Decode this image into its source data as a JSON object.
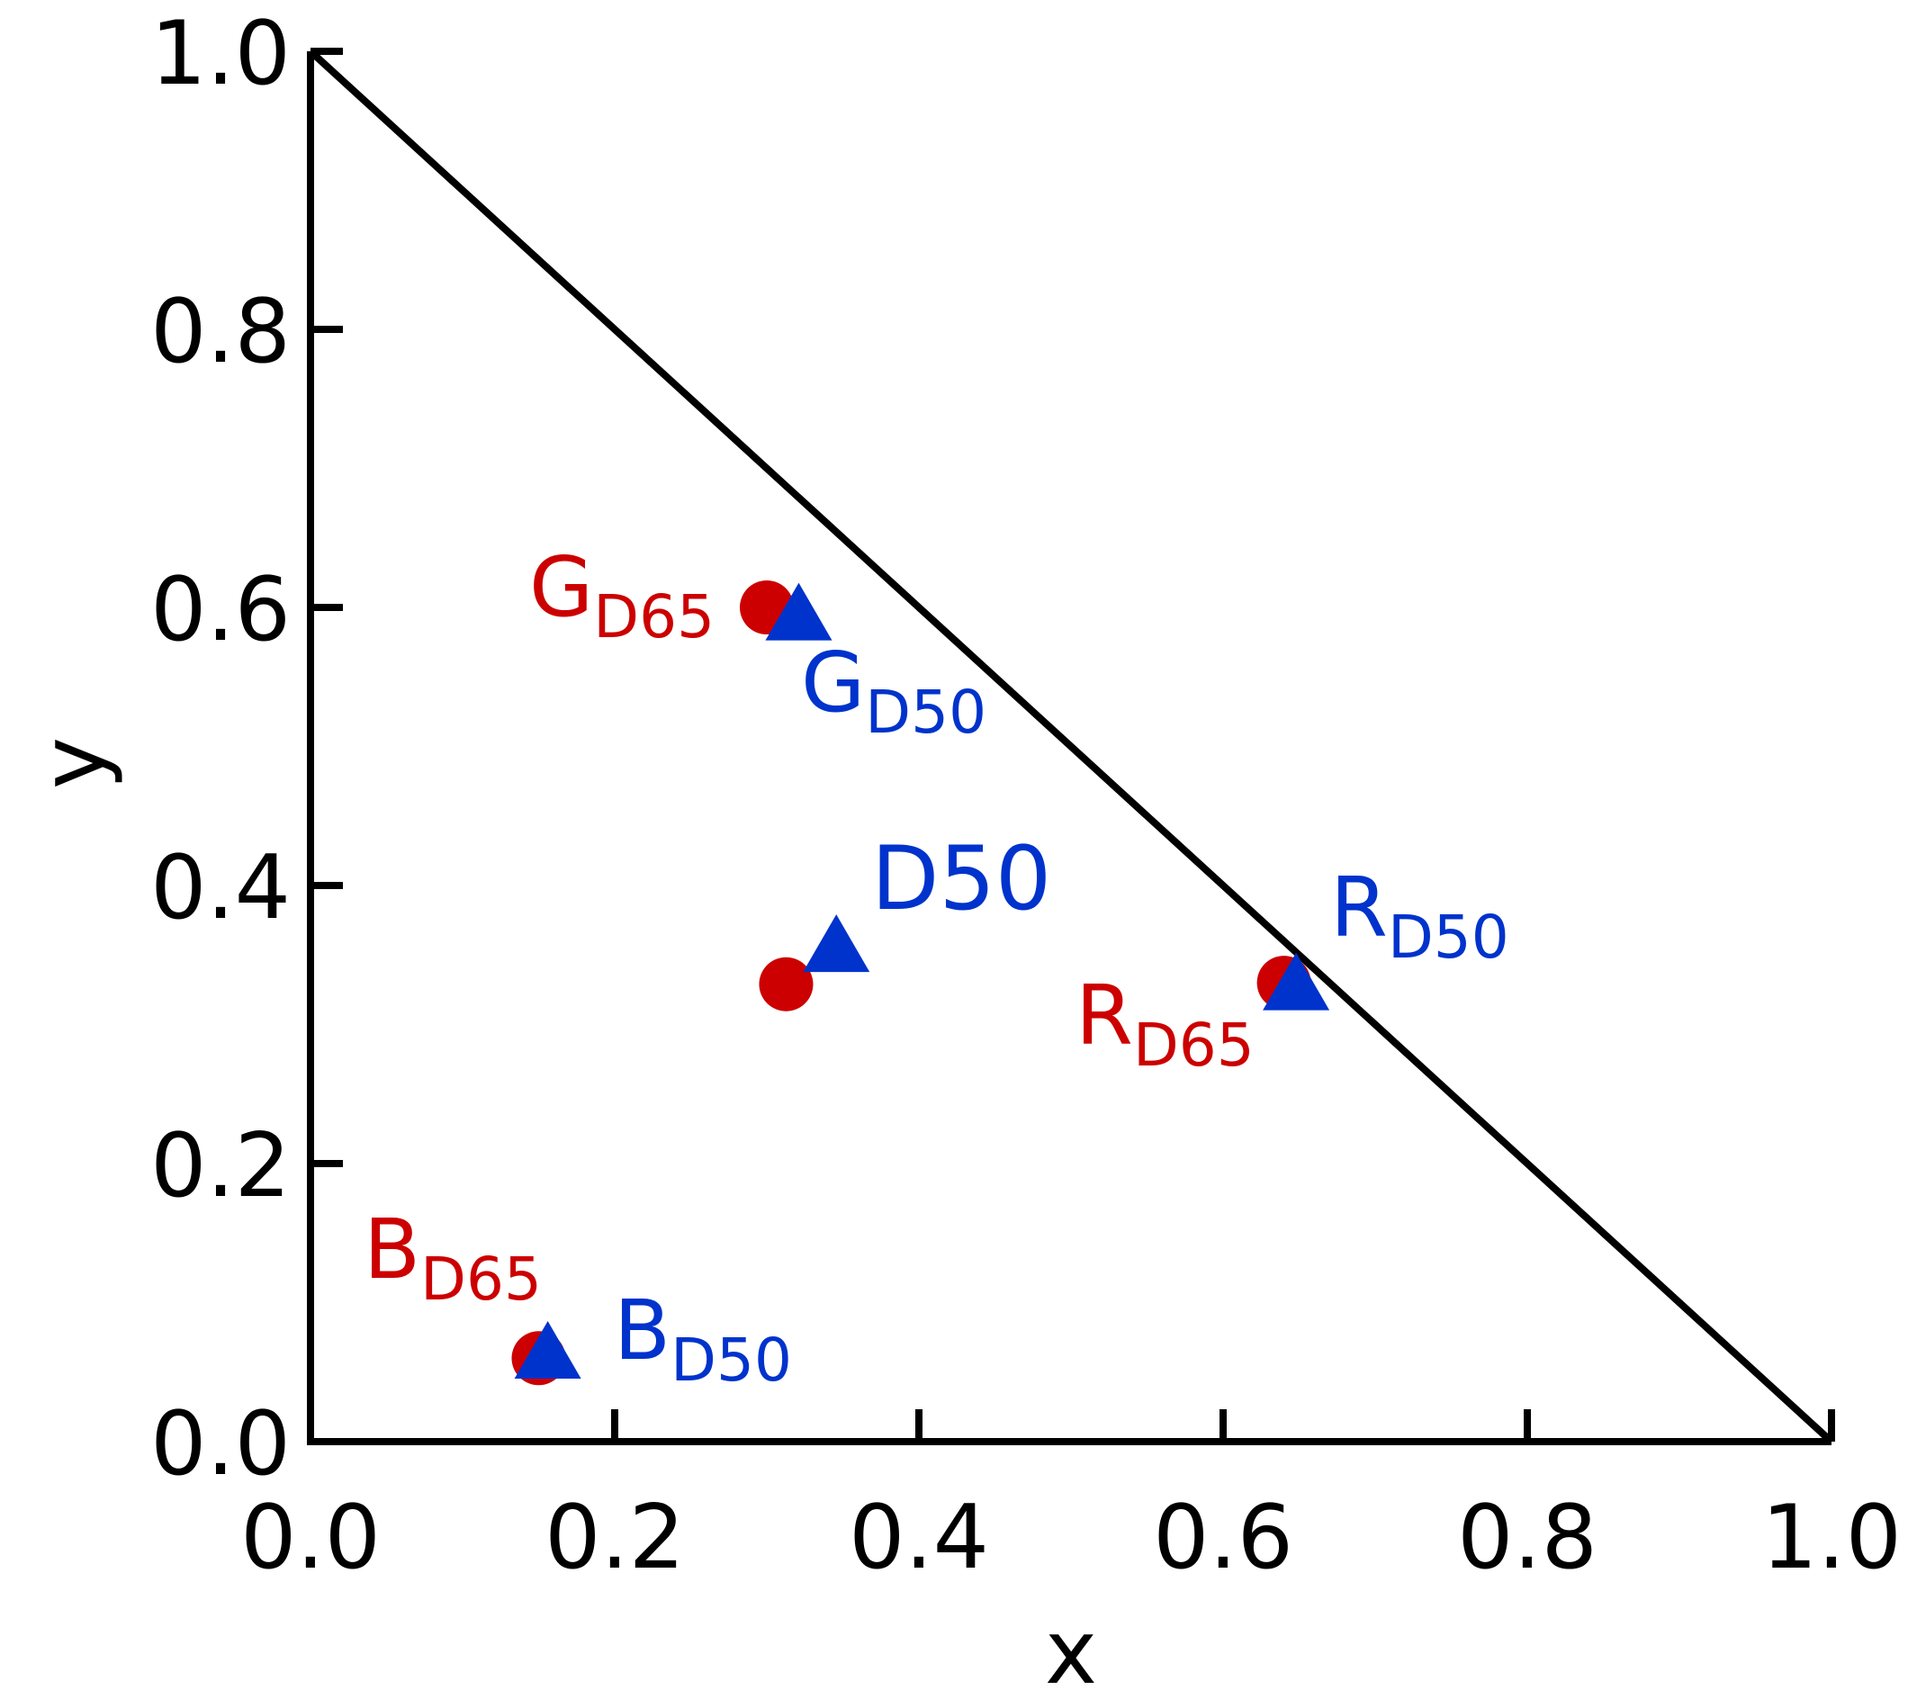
{
  "chart_data": {
    "type": "scatter",
    "title": "",
    "xlabel": "x",
    "ylabel": "y",
    "xlim": [
      0.0,
      1.0
    ],
    "ylim": [
      0.0,
      1.0
    ],
    "xticks": [
      "0.0",
      "0.2",
      "0.4",
      "0.6",
      "0.8",
      "1.0"
    ],
    "yticks": [
      "0.0",
      "0.2",
      "0.4",
      "0.6",
      "0.8",
      "1.0"
    ],
    "grid": false,
    "legend": "none",
    "boundary_line": {
      "from": [
        0.0,
        1.0
      ],
      "to": [
        1.0,
        0.0
      ]
    },
    "colors": {
      "d65": "#cc0000",
      "d50": "#0033cc",
      "axis": "#000000"
    },
    "series": [
      {
        "marker": "circle",
        "color": "#cc0000",
        "points": [
          {
            "x": 0.3,
            "y": 0.6
          },
          {
            "x": 0.3127,
            "y": 0.329
          },
          {
            "x": 0.64,
            "y": 0.33
          },
          {
            "x": 0.15,
            "y": 0.06
          }
        ]
      },
      {
        "marker": "triangle",
        "color": "#0033cc",
        "points": [
          {
            "x": 0.321,
            "y": 0.597
          },
          {
            "x": 0.3457,
            "y": 0.3585
          },
          {
            "x": 0.648,
            "y": 0.331
          },
          {
            "x": 0.156,
            "y": 0.066
          }
        ]
      }
    ],
    "annotations": [
      {
        "id": "g-d65",
        "main": "G",
        "sub": "D65",
        "color": "#cc0000"
      },
      {
        "id": "g-d50",
        "main": "G",
        "sub": "D50",
        "color": "#0033cc"
      },
      {
        "id": "d50",
        "main": "D50",
        "sub": "",
        "color": "#0033cc"
      },
      {
        "id": "r-d50",
        "main": "R",
        "sub": "D50",
        "color": "#0033cc"
      },
      {
        "id": "r-d65",
        "main": "R",
        "sub": "D65",
        "color": "#cc0000"
      },
      {
        "id": "b-d65",
        "main": "B",
        "sub": "D65",
        "color": "#cc0000"
      },
      {
        "id": "b-d50",
        "main": "B",
        "sub": "D50",
        "color": "#0033cc"
      }
    ]
  }
}
